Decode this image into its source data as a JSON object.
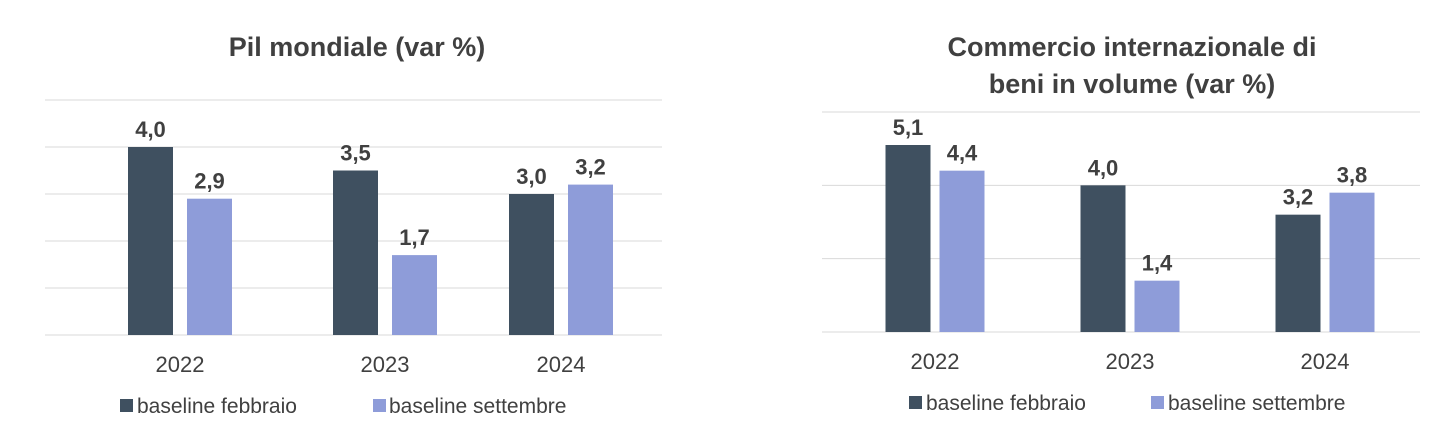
{
  "colors": {
    "series1": "#3f5060",
    "series2": "#8e9cd9",
    "text": "#404040",
    "grid": "#d9d9d9"
  },
  "chart_data": [
    {
      "type": "bar",
      "title": "Pil mondiale (var %)",
      "title_lines": [
        "Pil mondiale (var %)"
      ],
      "categories": [
        "2022",
        "2023",
        "2024"
      ],
      "series": [
        {
          "name": "baseline febbraio",
          "values": [
            4.0,
            3.5,
            3.0
          ],
          "labels": [
            "4,0",
            "3,5",
            "3,0"
          ]
        },
        {
          "name": "baseline settembre",
          "values": [
            2.9,
            1.7,
            3.2
          ],
          "labels": [
            "2,9",
            "1,7",
            "3,2"
          ]
        }
      ],
      "ylim": [
        0,
        5
      ],
      "grid": true,
      "legend": "bottom"
    },
    {
      "type": "bar",
      "title": "Commercio internazionale di beni in volume (var %)",
      "title_lines": [
        "Commercio internazionale di",
        "beni in volume (var %)"
      ],
      "categories": [
        "2022",
        "2023",
        "2024"
      ],
      "series": [
        {
          "name": "baseline febbraio",
          "values": [
            5.1,
            4.0,
            3.2
          ],
          "labels": [
            "5,1",
            "4,0",
            "3,2"
          ]
        },
        {
          "name": "baseline settembre",
          "values": [
            4.4,
            1.4,
            3.8
          ],
          "labels": [
            "4,4",
            "1,4",
            "3,8"
          ]
        }
      ],
      "ylim": [
        0,
        6
      ],
      "grid": true,
      "legend": "bottom"
    }
  ]
}
